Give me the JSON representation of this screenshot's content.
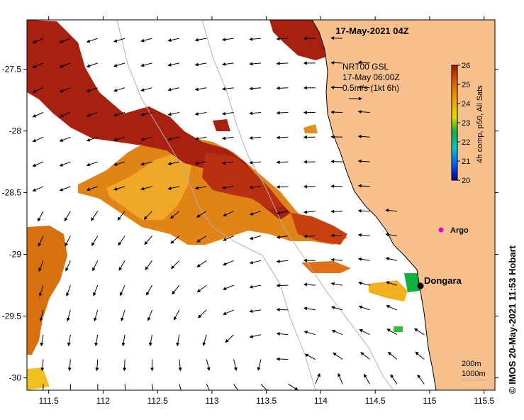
{
  "title": "17-May-2021 04Z",
  "current_info": {
    "line1": "NRT00 GSL",
    "line2": "17-May 06:00Z",
    "line3": "0.5m/s (1kt 6h)"
  },
  "colorbar": {
    "label": "4h comp, p50, All Sats",
    "ticks": [
      "26",
      "25",
      "24",
      "23",
      "22",
      "21",
      "20"
    ],
    "min": 20,
    "max": 26,
    "colors": [
      "#000080",
      "#0070ff",
      "#00c8c8",
      "#10b040",
      "#d8e000",
      "#f0a000",
      "#e06000",
      "#a81800"
    ]
  },
  "places": {
    "dongara": "Dongara",
    "argo": "Argo"
  },
  "scale": {
    "contour1": "200m",
    "contour2": "1000m"
  },
  "credit": "© IMOS 20-May-2021 11:53 Hobart",
  "x_axis": {
    "range": [
      111.3,
      115.6
    ],
    "ticks": [
      "111.5",
      "112",
      "112.5",
      "113",
      "113.5",
      "114",
      "114.5",
      "115",
      "115.5"
    ]
  },
  "y_axis": {
    "range": [
      -30.1,
      -27.1
    ],
    "ticks": [
      "-27.5",
      "-28",
      "-28.5",
      "-29",
      "-29.5",
      "-30"
    ]
  },
  "map_data": {
    "land_color": "#f7c08c",
    "sst_units": "deg C",
    "dongara_lon": 114.93,
    "dongara_lat": -29.25,
    "argo_lon": 115.1,
    "argo_lat": -28.85
  }
}
